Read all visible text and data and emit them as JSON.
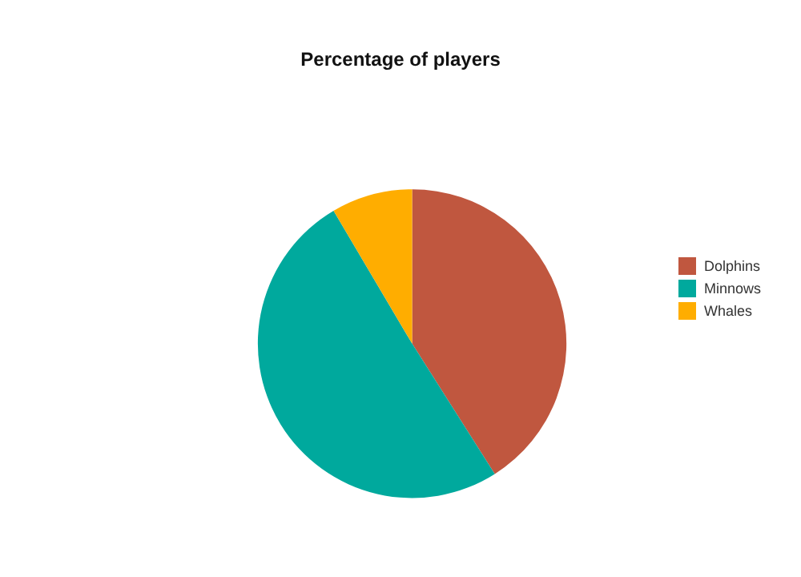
{
  "chart_data": {
    "type": "pie",
    "title": "Percentage of players",
    "categories": [
      "Dolphins",
      "Minnows",
      "Whales"
    ],
    "values": [
      41,
      50.5,
      8.5
    ],
    "colors": [
      "#c0573f",
      "#00a99d",
      "#ffad00"
    ],
    "legend": "right"
  }
}
